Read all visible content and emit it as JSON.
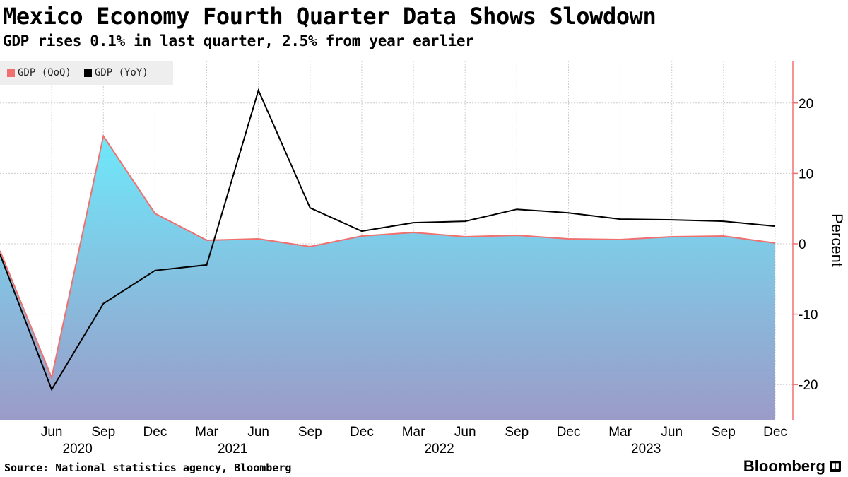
{
  "header": {
    "title": "Mexico Economy Fourth Quarter Data Shows Slowdown",
    "subtitle": "GDP rises 0.1% in last quarter, 2.5% from year earlier"
  },
  "footer": {
    "source": "Source: National statistics agency, Bloomberg",
    "brand": "Bloomberg"
  },
  "colors": {
    "qoq_line": "#f07070",
    "yoy_line": "#000000",
    "area_top": "#6ee8fa",
    "area_bottom": "#9b9bc8",
    "axis": "#f07070",
    "grid": "#cccccc"
  },
  "chart_data": {
    "type": "area",
    "title": "Mexico Economy Fourth Quarter Data Shows Slowdown",
    "ylabel": "Percent",
    "ylim": [
      -25,
      26
    ],
    "yticks": [
      20,
      10,
      0,
      -10,
      -20
    ],
    "grid": true,
    "legend_position": "top-left",
    "x_tick_labels": [
      "Jun",
      "Sep",
      "Dec",
      "Mar",
      "Jun",
      "Sep",
      "Dec",
      "Mar",
      "Jun",
      "Sep",
      "Dec",
      "Mar",
      "Jun",
      "Sep",
      "Dec"
    ],
    "year_labels": [
      {
        "label": "2020",
        "at_index": 1.5
      },
      {
        "label": "2021",
        "at_index": 4.5
      },
      {
        "label": "2022",
        "at_index": 8.5
      },
      {
        "label": "2023",
        "at_index": 12.5
      }
    ],
    "categories": [
      "Mar 2020",
      "Jun 2020",
      "Sep 2020",
      "Dec 2020",
      "Mar 2021",
      "Jun 2021",
      "Sep 2021",
      "Dec 2021",
      "Mar 2022",
      "Jun 2022",
      "Sep 2022",
      "Dec 2022",
      "Mar 2023",
      "Jun 2023",
      "Sep 2023",
      "Dec 2023"
    ],
    "series": [
      {
        "name": "GDP (QoQ)",
        "values": [
          -1.0,
          -19.0,
          15.3,
          4.3,
          0.5,
          0.7,
          -0.4,
          1.1,
          1.6,
          1.0,
          1.2,
          0.7,
          0.6,
          1.0,
          1.1,
          0.1
        ]
      },
      {
        "name": "GDP (YoY)",
        "values": [
          -1.5,
          -20.7,
          -8.5,
          -3.8,
          -3.0,
          21.8,
          5.1,
          1.8,
          3.0,
          3.2,
          4.9,
          4.4,
          3.5,
          3.4,
          3.2,
          2.5
        ]
      }
    ]
  }
}
